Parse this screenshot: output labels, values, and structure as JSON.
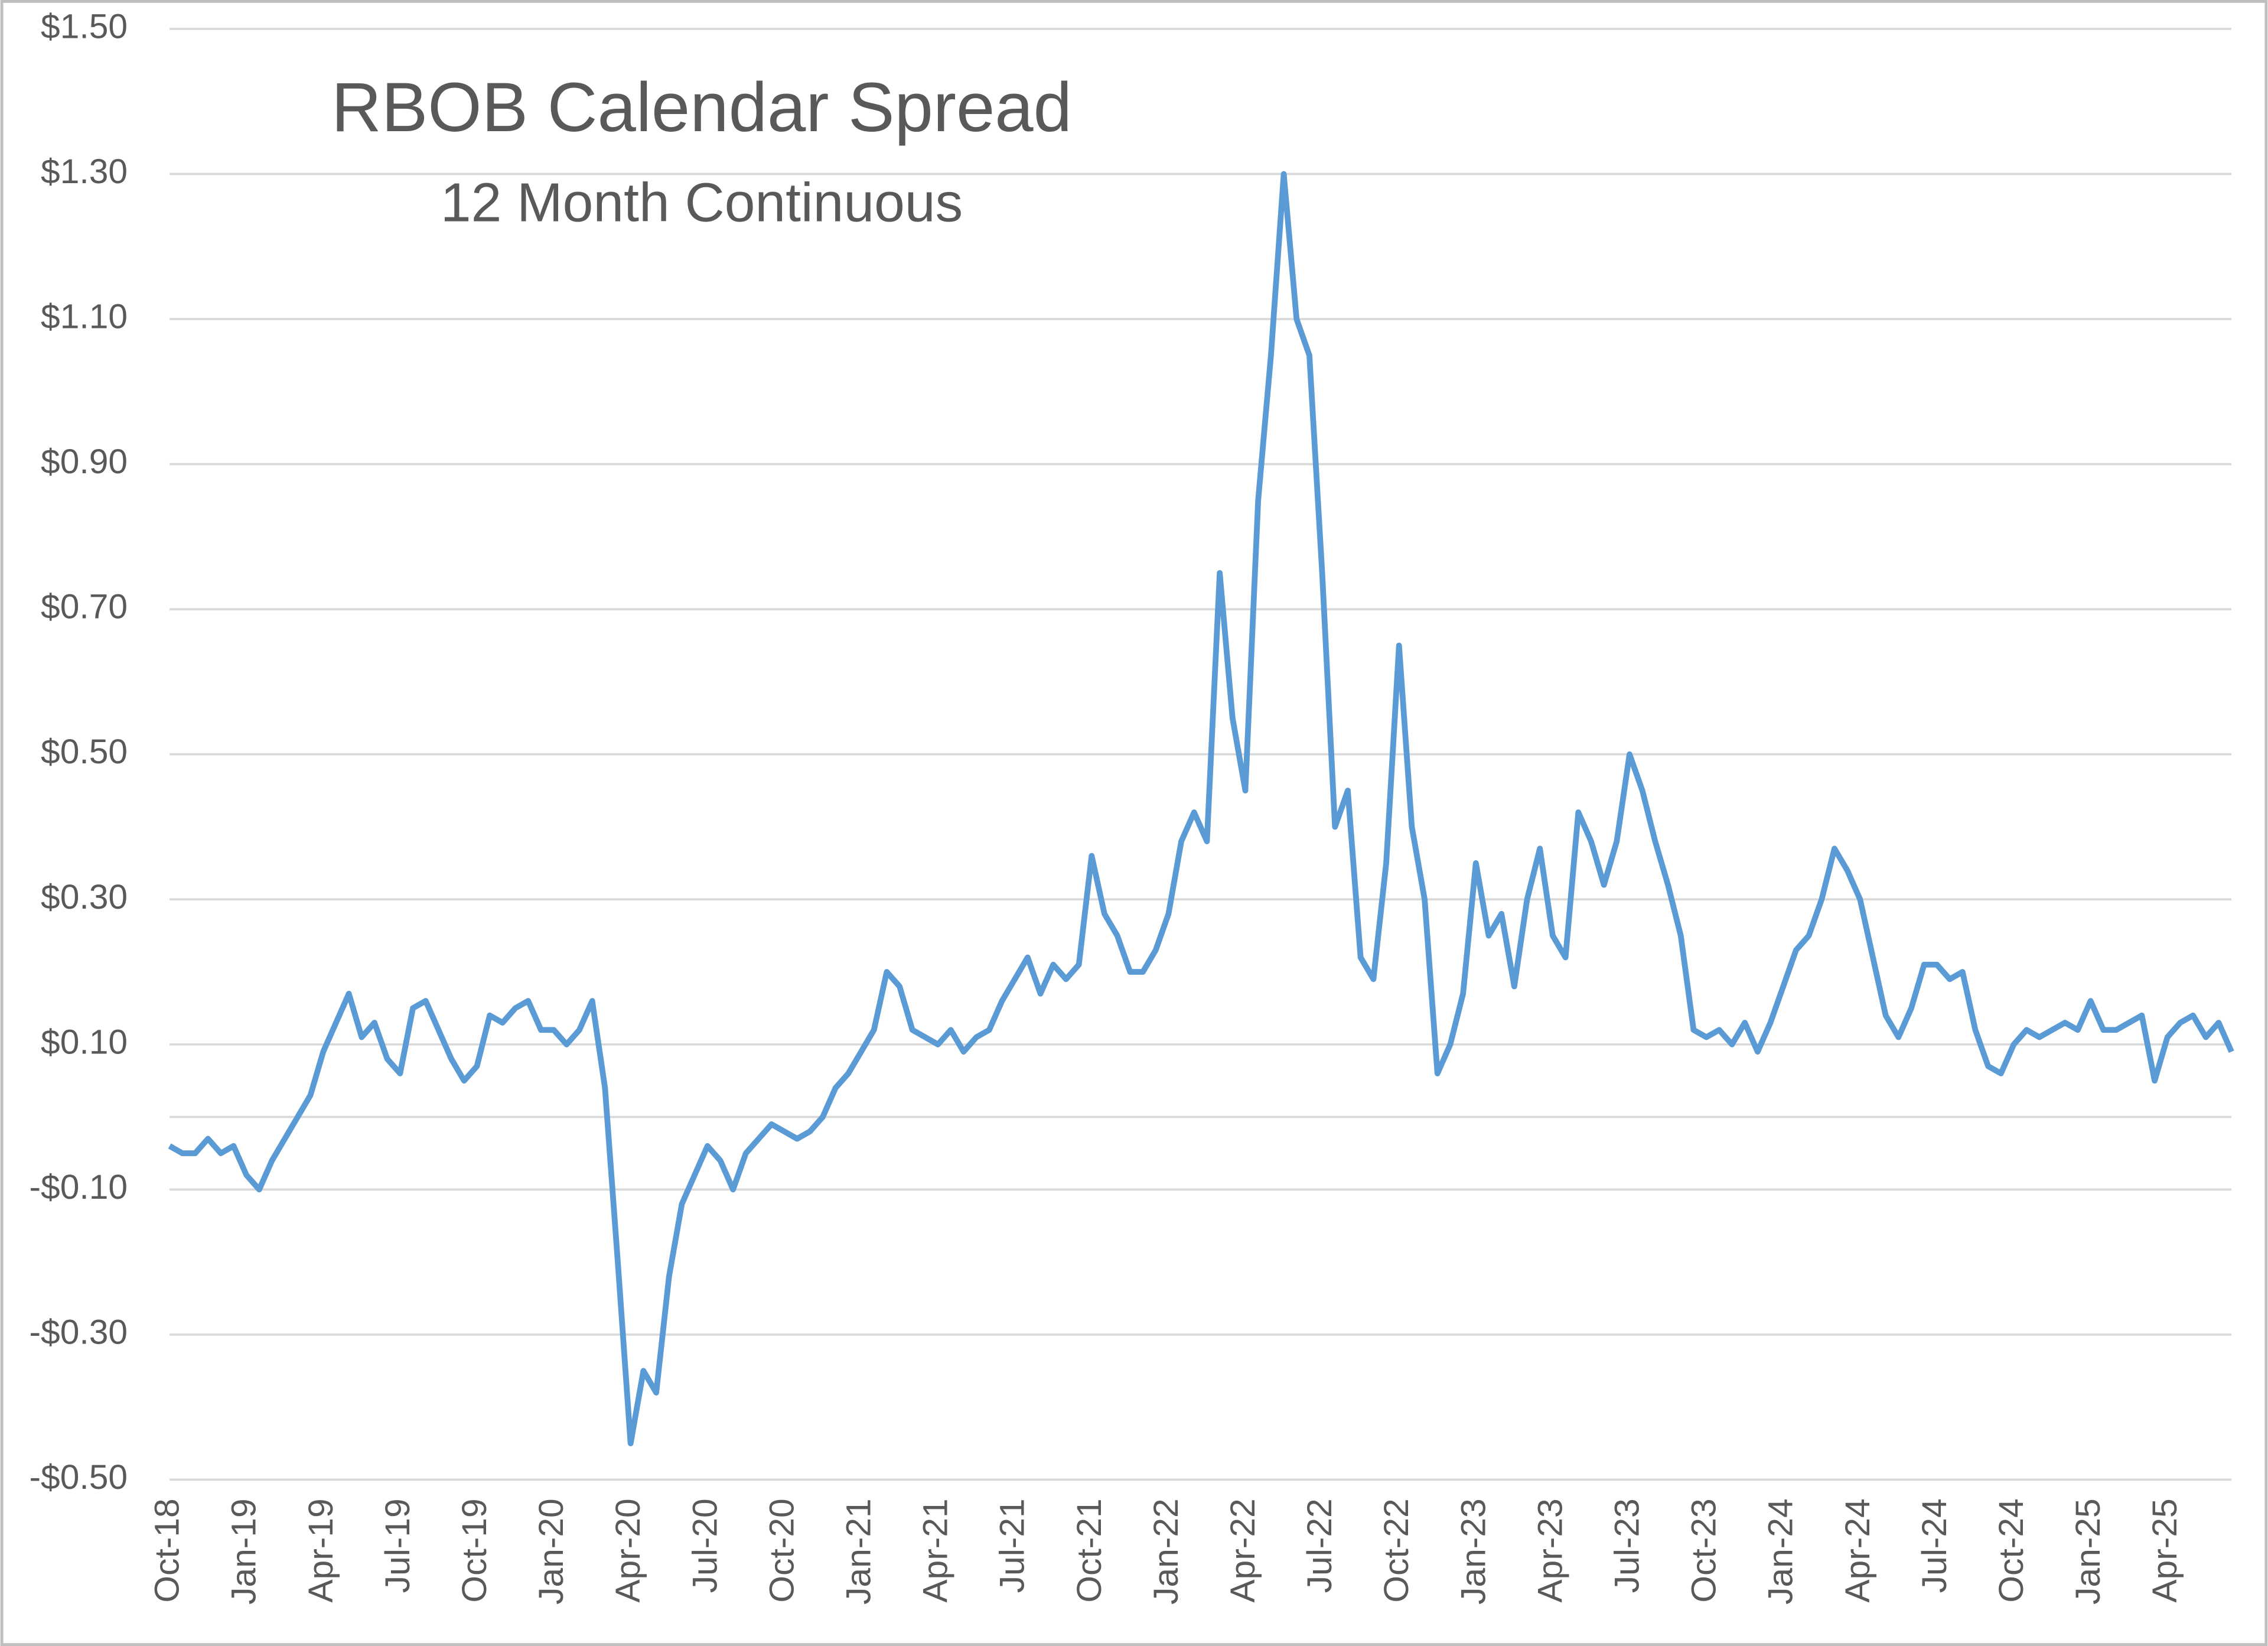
{
  "chart_data": {
    "type": "line",
    "title": "RBOB Calendar Spread",
    "subtitle": "12 Month Continuous",
    "color": "#5b9bd5",
    "grid": true,
    "ylim": [
      -0.5,
      1.5
    ],
    "yticks": [
      {
        "value": -0.5,
        "label": "-$0.50"
      },
      {
        "value": -0.3,
        "label": "-$0.30"
      },
      {
        "value": -0.1,
        "label": "-$0.10"
      },
      {
        "value": 0.1,
        "label": "$0.10"
      },
      {
        "value": 0.3,
        "label": "$0.30"
      },
      {
        "value": 0.5,
        "label": "$0.50"
      },
      {
        "value": 0.7,
        "label": "$0.70"
      },
      {
        "value": 0.9,
        "label": "$0.90"
      },
      {
        "value": 1.1,
        "label": "$1.10"
      },
      {
        "value": 1.3,
        "label": "$1.30"
      },
      {
        "value": 1.5,
        "label": "$1.50"
      }
    ],
    "categories": [
      "Oct-18",
      null,
      null,
      null,
      null,
      null,
      "Jan-19",
      null,
      null,
      null,
      null,
      null,
      "Apr-19",
      null,
      null,
      null,
      null,
      null,
      "Jul-19",
      null,
      null,
      null,
      null,
      null,
      "Oct-19",
      null,
      null,
      null,
      null,
      null,
      "Jan-20",
      null,
      null,
      null,
      null,
      null,
      "Apr-20",
      null,
      null,
      null,
      null,
      null,
      "Jul-20",
      null,
      null,
      null,
      null,
      null,
      "Oct-20",
      null,
      null,
      null,
      null,
      null,
      "Jan-21",
      null,
      null,
      null,
      null,
      null,
      "Apr-21",
      null,
      null,
      null,
      null,
      null,
      "Jul-21",
      null,
      null,
      null,
      null,
      null,
      "Oct-21",
      null,
      null,
      null,
      null,
      null,
      "Jan-22",
      null,
      null,
      null,
      null,
      null,
      "Apr-22",
      null,
      null,
      null,
      null,
      null,
      "Jul-22",
      null,
      null,
      null,
      null,
      null,
      "Oct-22",
      null,
      null,
      null,
      null,
      null,
      "Jan-23",
      null,
      null,
      null,
      null,
      null,
      "Apr-23",
      null,
      null,
      null,
      null,
      null,
      "Jul-23",
      null,
      null,
      null,
      null,
      null,
      "Oct-23",
      null,
      null,
      null,
      null,
      null,
      "Jan-24",
      null,
      null,
      null,
      null,
      null,
      "Apr-24",
      null,
      null,
      null,
      null,
      null,
      "Jul-24",
      null,
      null,
      null,
      null,
      null,
      "Oct-24",
      null,
      null,
      null,
      null,
      null,
      "Jan-25",
      null,
      null,
      null,
      null,
      null,
      "Apr-25",
      null,
      null,
      null,
      null,
      null
    ],
    "values": [
      -0.04,
      -0.05,
      -0.05,
      -0.03,
      -0.05,
      -0.04,
      -0.08,
      -0.1,
      -0.06,
      -0.03,
      0.0,
      0.03,
      0.09,
      0.13,
      0.17,
      0.11,
      0.13,
      0.08,
      0.06,
      0.15,
      0.16,
      0.12,
      0.08,
      0.05,
      0.07,
      0.14,
      0.13,
      0.15,
      0.16,
      0.12,
      0.12,
      0.1,
      0.12,
      0.16,
      0.04,
      -0.2,
      -0.45,
      -0.35,
      -0.38,
      -0.22,
      -0.12,
      -0.08,
      -0.04,
      -0.06,
      -0.1,
      -0.05,
      -0.03,
      -0.01,
      -0.02,
      -0.03,
      -0.02,
      0.0,
      0.04,
      0.06,
      0.09,
      0.12,
      0.2,
      0.18,
      0.12,
      0.11,
      0.1,
      0.12,
      0.09,
      0.11,
      0.12,
      0.16,
      0.19,
      0.22,
      0.17,
      0.21,
      0.19,
      0.21,
      0.36,
      0.28,
      0.25,
      0.2,
      0.2,
      0.23,
      0.28,
      0.38,
      0.42,
      0.38,
      0.75,
      0.55,
      0.45,
      0.85,
      1.05,
      1.3,
      1.1,
      1.05,
      0.75,
      0.4,
      0.45,
      0.22,
      0.19,
      0.35,
      0.65,
      0.4,
      0.3,
      0.06,
      0.1,
      0.17,
      0.35,
      0.25,
      0.28,
      0.18,
      0.3,
      0.37,
      0.25,
      0.22,
      0.42,
      0.38,
      0.32,
      0.38,
      0.5,
      0.45,
      0.38,
      0.32,
      0.25,
      0.12,
      0.11,
      0.12,
      0.1,
      0.13,
      0.09,
      0.13,
      0.18,
      0.23,
      0.25,
      0.3,
      0.37,
      0.34,
      0.3,
      0.22,
      0.14,
      0.11,
      0.15,
      0.21,
      0.21,
      0.19,
      0.2,
      0.12,
      0.07,
      0.06,
      0.1,
      0.12,
      0.11,
      0.12,
      0.13,
      0.12,
      0.16,
      0.12,
      0.12,
      0.13,
      0.14,
      0.05,
      0.11,
      0.13,
      0.14,
      0.11,
      0.13,
      0.09
    ]
  }
}
